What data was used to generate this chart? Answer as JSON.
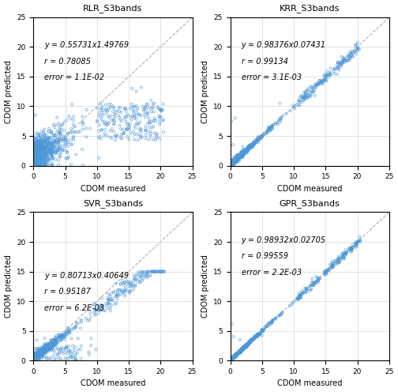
{
  "subplots": [
    {
      "title": "RLR_S3bands",
      "equation": "y = 0.55731x1.49769",
      "r": "r = 0.78085",
      "error": "error = 1.1E-02",
      "slope": 0.55731,
      "intercept": 1.49769,
      "r_value": 0.78085,
      "mode": "rlr",
      "ann_x": 0.07,
      "ann_y_eq": 0.84,
      "ann_y_r": 0.73,
      "ann_y_err": 0.62
    },
    {
      "title": "KRR_S3bands",
      "equation": "y = 0.98376x0.07431",
      "r": "r = 0.99134",
      "error": "error = 3.1E-03",
      "slope": 0.98376,
      "intercept": 0.07431,
      "r_value": 0.99134,
      "mode": "krr",
      "ann_x": 0.07,
      "ann_y_eq": 0.84,
      "ann_y_r": 0.73,
      "ann_y_err": 0.62
    },
    {
      "title": "SVR_S3bands",
      "equation": "y = 0.80713x0.40649",
      "r": "r = 0.95187",
      "error": "error = 6.2E-03",
      "slope": 0.80713,
      "intercept": 0.40649,
      "r_value": 0.95187,
      "mode": "svr",
      "ann_x": 0.07,
      "ann_y_eq": 0.6,
      "ann_y_r": 0.49,
      "ann_y_err": 0.38
    },
    {
      "title": "GPR_S3bands",
      "equation": "y = 0.98932x0.02705",
      "r": "r = 0.99559",
      "error": "error = 2.2E-03",
      "slope": 0.98932,
      "intercept": 0.02705,
      "r_value": 0.99559,
      "mode": "gpr",
      "ann_x": 0.07,
      "ann_y_eq": 0.84,
      "ann_y_r": 0.73,
      "ann_y_err": 0.62
    }
  ],
  "xlim": [
    0,
    25
  ],
  "ylim": [
    0,
    25
  ],
  "xticks": [
    0,
    5,
    10,
    15,
    20,
    25
  ],
  "yticks": [
    0,
    5,
    10,
    15,
    20,
    25
  ],
  "xlabel": "CDOM measured",
  "ylabel": "CDOM predicted",
  "scatter_color": "#4C96D7",
  "scatter_size": 5,
  "scatter_lw": 0.5,
  "diag_color": "#B0B0B0",
  "grid_color": "#CCCCCC",
  "title_fontsize": 8,
  "label_fontsize": 7,
  "tick_fontsize": 6.5,
  "ann_fontsize": 7
}
